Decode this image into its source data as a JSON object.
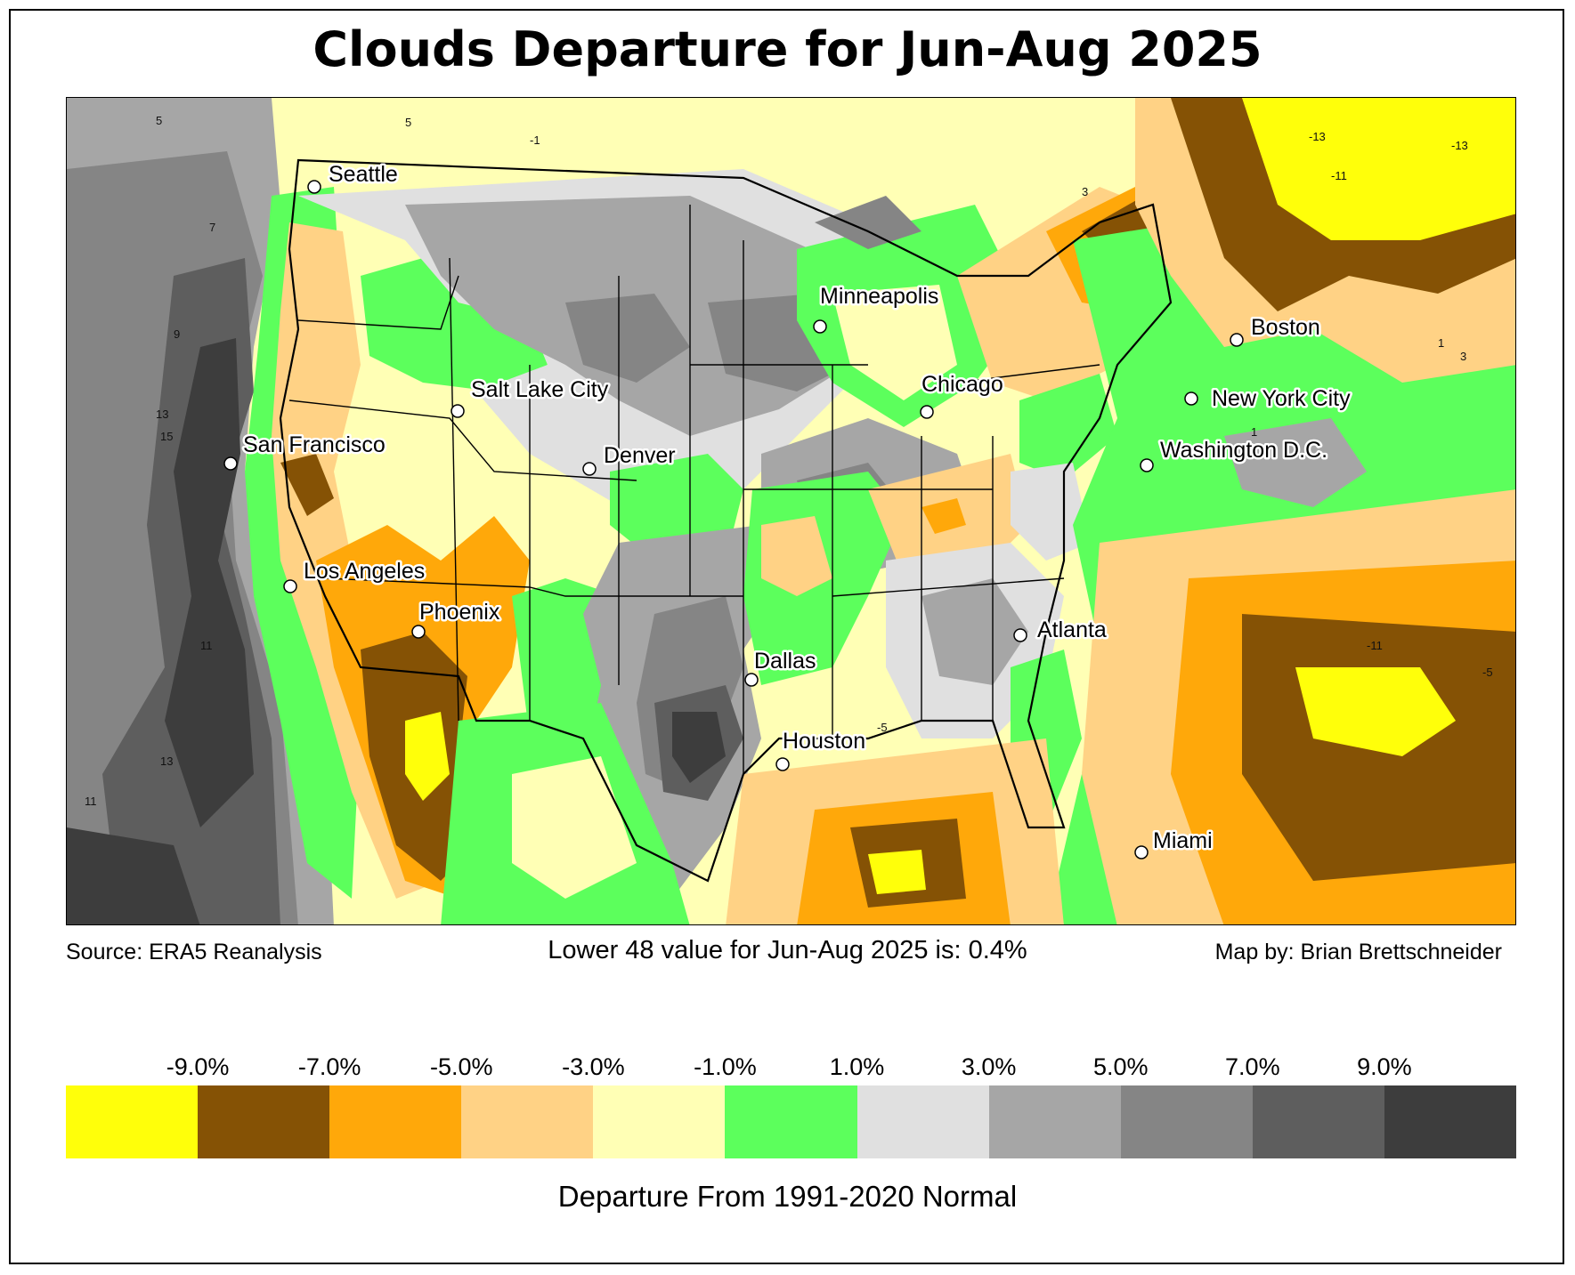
{
  "title": "Clouds Departure for Jun-Aug 2025",
  "source": "Source: ERA5 Reanalysis",
  "summary": "Lower 48 value for Jun-Aug 2025 is: 0.4%",
  "credit": "Map by: Brian Brettschneider",
  "legend": {
    "title": "Departure From 1991-2020 Normal",
    "ticks": [
      "-9.0%",
      "-7.0%",
      "-5.0%",
      "-3.0%",
      "-1.0%",
      "1.0%",
      "3.0%",
      "5.0%",
      "7.0%",
      "9.0%"
    ],
    "colors": [
      "#ffff0a",
      "#855205",
      "#ffa80a",
      "#ffd285",
      "#ffffb5",
      "#5cff5c",
      "#e0e0e0",
      "#a6a6a6",
      "#858585",
      "#5e5e5e",
      "#3d3d3d"
    ]
  },
  "cities": [
    {
      "name": "Seattle"
    },
    {
      "name": "Minneapolis"
    },
    {
      "name": "Boston"
    },
    {
      "name": "Chicago"
    },
    {
      "name": "Salt Lake City"
    },
    {
      "name": "New York City"
    },
    {
      "name": "San Francisco"
    },
    {
      "name": "Denver"
    },
    {
      "name": "Washington D.C."
    },
    {
      "name": "Los Angeles"
    },
    {
      "name": "Phoenix"
    },
    {
      "name": "Atlanta"
    },
    {
      "name": "Dallas"
    },
    {
      "name": "Houston"
    },
    {
      "name": "Miami"
    }
  ],
  "contour_labels": [
    "-13",
    "-13",
    "-11",
    "-11",
    "-5",
    "-5",
    "-1",
    "1",
    "1",
    "3",
    "3",
    "5",
    "5",
    "7",
    "9",
    "11",
    "13",
    "15",
    "11",
    "13"
  ]
}
